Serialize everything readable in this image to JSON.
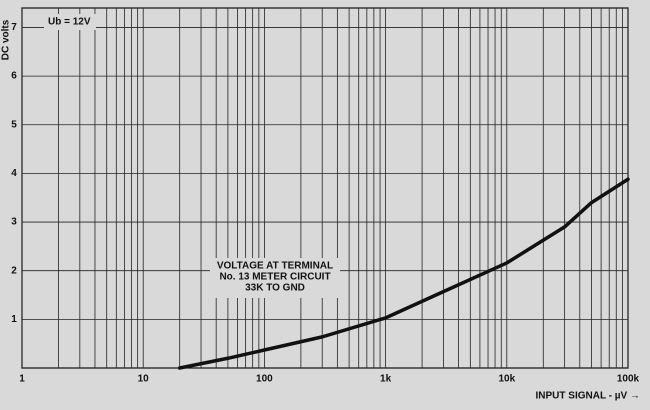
{
  "chart_data": {
    "type": "line",
    "x_label": "INPUT SIGNAL - µV →",
    "y_label": "DC volts",
    "annotations": [
      "Ub = 12V",
      "VOLTAGE AT TERMINAL",
      "No. 13 METER CIRCUIT",
      "33K  TO GND"
    ],
    "x": [
      20,
      50,
      100,
      300,
      1000,
      3000,
      10000,
      30000,
      50000,
      100000
    ],
    "values": [
      0,
      0.2,
      0.37,
      0.64,
      1.03,
      1.57,
      2.16,
      2.9,
      3.4,
      3.88
    ],
    "color": "#111111",
    "log_x": true,
    "xlim": [
      1,
      100000
    ],
    "ylim": [
      0,
      7.4
    ],
    "xticks": [
      1,
      10,
      100,
      {
        "value": 1000,
        "label": "1k"
      },
      {
        "value": 10000,
        "label": "10k"
      },
      {
        "value": 100000,
        "label": "100k"
      }
    ],
    "x_minor_ticks": [
      2,
      3,
      4,
      5,
      6,
      7,
      8,
      9,
      20,
      30,
      40,
      50,
      60,
      70,
      80,
      90,
      200,
      300,
      400,
      500,
      600,
      700,
      800,
      900,
      2000,
      3000,
      4000,
      5000,
      6000,
      7000,
      8000,
      9000,
      20000,
      30000,
      40000,
      50000,
      60000,
      70000,
      80000,
      90000
    ],
    "yticks": [
      1,
      2,
      3,
      4,
      5,
      6,
      7
    ],
    "grid": true
  }
}
